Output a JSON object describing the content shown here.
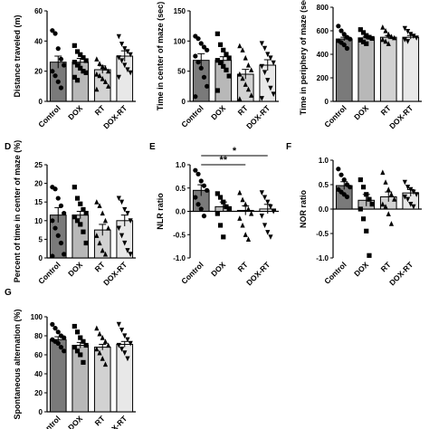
{
  "colors": {
    "Control": "#7a7a7a",
    "DOX": "#b8b8b8",
    "RT": "#d2d2d2",
    "DOX-RT": "#e8e8e8"
  },
  "chart_data": [
    {
      "id": "A",
      "type": "bar",
      "panel_letter": "",
      "ylabel": "Distance traveled (m)",
      "ylim": [
        0,
        60
      ],
      "yticks": [
        0,
        20,
        40,
        60
      ],
      "categories": [
        "Control",
        "DOX",
        "RT",
        "DOX-RT"
      ],
      "values": [
        26,
        26,
        21,
        30
      ],
      "sem": [
        4,
        2.5,
        2.5,
        3.5
      ],
      "points": [
        [
          47,
          45,
          35,
          28,
          24,
          20,
          17,
          13,
          9
        ],
        [
          37,
          33,
          31,
          29,
          27,
          26,
          24,
          22,
          20,
          19,
          16,
          14
        ],
        [
          28,
          25,
          23,
          22,
          20,
          18,
          17,
          15,
          13,
          10,
          8
        ],
        [
          43,
          38,
          35,
          33,
          31,
          29,
          27,
          24,
          21,
          19,
          16
        ]
      ],
      "markers": [
        "circle",
        "square",
        "triangle",
        "invtriangle"
      ],
      "sig": []
    },
    {
      "id": "B",
      "type": "bar",
      "panel_letter": "",
      "ylabel": "Time in center of maze (sec)",
      "ylim": [
        0,
        150
      ],
      "yticks": [
        0,
        50,
        100,
        150
      ],
      "categories": [
        "Control",
        "DOX",
        "RT",
        "DOX-RT"
      ],
      "values": [
        68,
        68,
        45,
        60
      ],
      "sem": [
        11,
        6,
        8,
        9
      ],
      "points": [
        [
          108,
          104,
          96,
          90,
          85,
          75,
          65,
          55,
          40,
          25,
          8
        ],
        [
          112,
          94,
          85,
          78,
          72,
          68,
          64,
          58,
          52,
          42,
          18
        ],
        [
          92,
          85,
          72,
          60,
          52,
          45,
          38,
          28,
          20,
          10,
          4
        ],
        [
          96,
          88,
          78,
          72,
          64,
          58,
          48,
          35,
          22,
          12,
          5
        ]
      ],
      "markers": [
        "circle",
        "square",
        "triangle",
        "invtriangle"
      ],
      "sig": []
    },
    {
      "id": "C",
      "type": "bar",
      "panel_letter": "",
      "ylabel": "Time in periphery of maze (sec)",
      "ylim": [
        0,
        800
      ],
      "yticks": [
        0,
        200,
        400,
        600,
        800
      ],
      "categories": [
        "Control",
        "DOX",
        "RT",
        "DOX-RT"
      ],
      "values": [
        530,
        540,
        545,
        545
      ],
      "sem": [
        15,
        12,
        15,
        15
      ],
      "points": [
        [
          640,
          600,
          570,
          545,
          530,
          515,
          500,
          480,
          450
        ],
        [
          610,
          585,
          560,
          545,
          535,
          520,
          505,
          490
        ],
        [
          630,
          600,
          570,
          550,
          540,
          525,
          510,
          490
        ],
        [
          620,
          595,
          570,
          555,
          540,
          525,
          510
        ]
      ],
      "markers": [
        "circle",
        "square",
        "triangle",
        "invtriangle"
      ],
      "sig": []
    },
    {
      "id": "D",
      "type": "bar",
      "panel_letter": "D",
      "ylabel": "Percent of time in center of maze (%)",
      "ylim": [
        0,
        25
      ],
      "yticks": [
        0,
        5,
        10,
        15,
        20,
        25
      ],
      "categories": [
        "Control",
        "DOX",
        "RT",
        "DOX-RT"
      ],
      "values": [
        11.5,
        11.5,
        7.5,
        10
      ],
      "sem": [
        2,
        1,
        1.5,
        1.5
      ],
      "points": [
        [
          19,
          18.5,
          16,
          14,
          12,
          10,
          8,
          6,
          4,
          1,
          0.5
        ],
        [
          19,
          16,
          14.5,
          13,
          12,
          11,
          10,
          9,
          7,
          4
        ],
        [
          15,
          14,
          12,
          10,
          8,
          6,
          4,
          2,
          1
        ],
        [
          16,
          15,
          13,
          12,
          10,
          8,
          6,
          4,
          2,
          1
        ]
      ],
      "markers": [
        "circle",
        "square",
        "triangle",
        "invtriangle"
      ],
      "sig": []
    },
    {
      "id": "E",
      "type": "bar",
      "panel_letter": "E",
      "ylabel": "NLR ratio",
      "ylim": [
        -1,
        1
      ],
      "yticks": [
        -1.0,
        -0.5,
        0.0,
        0.5,
        1.0
      ],
      "categories": [
        "Control",
        "DOX",
        "RT",
        "DOX-RT"
      ],
      "values": [
        0.45,
        0.1,
        0.02,
        0.05
      ],
      "sem": [
        0.12,
        0.1,
        0.1,
        0.1
      ],
      "points": [
        [
          0.88,
          0.8,
          0.65,
          0.55,
          0.45,
          0.3,
          0.15,
          0.05,
          -0.1
        ],
        [
          0.38,
          0.3,
          0.2,
          0.1,
          0.05,
          -0.05,
          -0.3,
          -0.55
        ],
        [
          0.4,
          0.25,
          0.15,
          0.05,
          -0.05,
          -0.15,
          -0.3,
          -0.5,
          -0.6
        ],
        [
          0.4,
          0.3,
          0.2,
          0.1,
          0.0,
          -0.1,
          -0.3,
          -0.45,
          -0.55
        ]
      ],
      "markers": [
        "circle",
        "square",
        "triangle",
        "invtriangle"
      ],
      "sig": [
        {
          "from": 0,
          "to": 3,
          "label": "*"
        },
        {
          "from": 0,
          "to": 2,
          "label": "**"
        }
      ]
    },
    {
      "id": "F",
      "type": "bar",
      "panel_letter": "F",
      "ylabel": "NOR ratio",
      "ylim": [
        -1,
        1
      ],
      "yticks": [
        -1.0,
        -0.5,
        0.0,
        0.5,
        1.0
      ],
      "categories": [
        "Control",
        "DOX",
        "RT",
        "DOX-RT"
      ],
      "values": [
        0.48,
        0.18,
        0.25,
        0.33
      ],
      "sem": [
        0.08,
        0.12,
        0.1,
        0.07
      ],
      "points": [
        [
          0.82,
          0.7,
          0.6,
          0.5,
          0.45,
          0.4,
          0.35,
          0.3,
          0.25
        ],
        [
          0.6,
          0.45,
          0.3,
          0.2,
          0.1,
          0.0,
          -0.2,
          -0.45,
          -0.95
        ],
        [
          0.75,
          0.55,
          0.4,
          0.3,
          0.2,
          0.1,
          0.05,
          -0.1,
          -0.3
        ],
        [
          0.55,
          0.45,
          0.4,
          0.35,
          0.3,
          0.25,
          0.2,
          0.1,
          0.05
        ]
      ],
      "markers": [
        "circle",
        "square",
        "triangle",
        "invtriangle"
      ],
      "sig": []
    },
    {
      "id": "G",
      "type": "bar",
      "panel_letter": "G",
      "ylabel": "Spontaneous alternation (%)",
      "ylim": [
        0,
        100
      ],
      "yticks": [
        0,
        20,
        40,
        60,
        80,
        100
      ],
      "categories": [
        "Control",
        "DOX",
        "RT",
        "DOX-RT"
      ],
      "values": [
        76,
        70,
        68,
        71
      ],
      "sem": [
        3,
        3,
        3,
        3
      ],
      "points": [
        [
          92,
          88,
          84,
          80,
          78,
          76,
          74,
          72,
          68,
          64
        ],
        [
          90,
          84,
          78,
          74,
          70,
          68,
          64,
          60,
          52
        ],
        [
          88,
          82,
          78,
          74,
          70,
          66,
          62,
          56,
          50
        ],
        [
          92,
          86,
          80,
          76,
          72,
          70,
          66,
          62,
          56
        ]
      ],
      "markers": [
        "circle",
        "square",
        "triangle",
        "invtriangle"
      ],
      "sig": []
    }
  ]
}
